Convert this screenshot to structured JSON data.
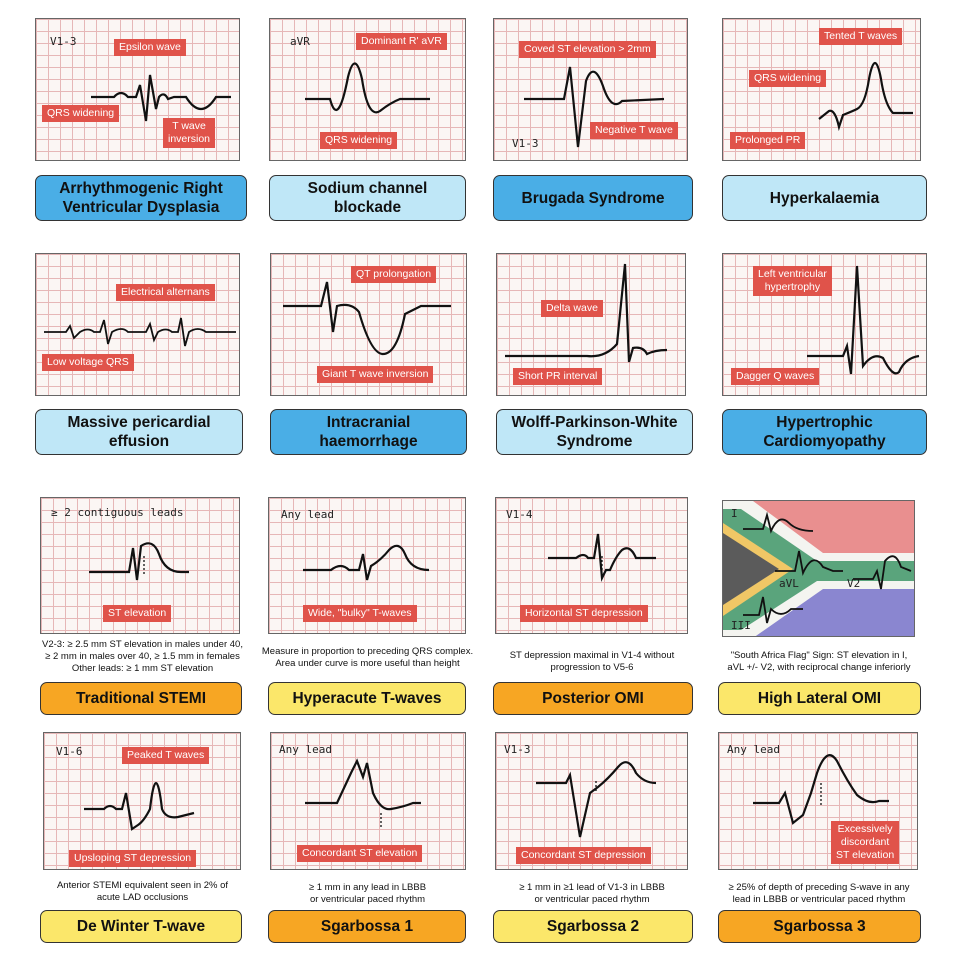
{
  "panels": {
    "arvd": {
      "lead": "V1-3",
      "tags": [
        "Epsilon wave",
        "QRS widening",
        "T wave\ninversion"
      ],
      "label": "Arrhythmogenic Right\nVentricular Dysplasia"
    },
    "sodium": {
      "lead": "aVR",
      "tags": [
        "Dominant R' aVR",
        "QRS widening"
      ],
      "label": "Sodium channel\nblockade"
    },
    "brugada": {
      "lead": "V1-3",
      "tags": [
        "Coved ST elevation > 2mm",
        "Negative T wave"
      ],
      "label": "Brugada Syndrome"
    },
    "hyperk": {
      "tags": [
        "Tented T waves",
        "QRS widening",
        "Prolonged PR"
      ],
      "label": "Hyperkalaemia"
    },
    "pericardial": {
      "tags": [
        "Electrical alternans",
        "Low voltage QRS"
      ],
      "label": "Massive pericardial\neffusion"
    },
    "intracranial": {
      "tags": [
        "QT prolongation",
        "Giant T wave inversion"
      ],
      "label": "Intracranial\nhaemorrhage"
    },
    "wpw": {
      "tags": [
        "Delta wave",
        "Short PR interval"
      ],
      "label": "Wolff-Parkinson-White\nSyndrome"
    },
    "hcm": {
      "tags": [
        "Left ventricular\nhypertrophy",
        "Dagger Q waves"
      ],
      "label": "Hypertrophic\nCardiomyopathy"
    },
    "stemi": {
      "lead": "≥ 2 contiguous leads",
      "tags": [
        "ST elevation"
      ],
      "label": "Traditional STEMI",
      "note": "V2-3: ≥ 2.5 mm ST elevation in males under 40,\n≥ 2 mm in males over 40, ≥ 1.5 mm in females\nOther leads: ≥ 1 mm ST elevation"
    },
    "hyperacute": {
      "lead": "Any lead",
      "tags": [
        "Wide, \"bulky\" T-waves"
      ],
      "label": "Hyperacute T-waves",
      "note": "Measure in proportion to preceding QRS complex.\nArea under curve is more useful than height"
    },
    "posterior": {
      "lead": "V1-4",
      "tags": [
        "Horizontal ST depression"
      ],
      "label": "Posterior OMI",
      "note": "ST depression maximal in V1-4 without\nprogression to V5-6"
    },
    "lateral": {
      "leads": [
        "I",
        "aVL",
        "V2",
        "III"
      ],
      "label": "High Lateral OMI",
      "note": "\"South Africa Flag\" Sign: ST elevation in I,\naVL +/- V2, with reciprocal change inferiorly"
    },
    "dewinter": {
      "lead": "V1-6",
      "tags": [
        "Peaked T waves",
        "Upsloping ST depression"
      ],
      "label": "De Winter T-wave",
      "note": "Anterior STEMI equivalent seen in 2% of\nacute LAD occlusions"
    },
    "sgarbossa1": {
      "lead": "Any lead",
      "tags": [
        "Concordant ST elevation"
      ],
      "label": "Sgarbossa 1",
      "note": "≥ 1 mm in any lead in LBBB\nor ventricular paced rhythm"
    },
    "sgarbossa2": {
      "lead": "V1-3",
      "tags": [
        "Concordant ST depression"
      ],
      "label": "Sgarbossa 2",
      "note": "≥ 1 mm in ≥1 lead of V1-3 in LBBB\nor ventricular paced rhythm"
    },
    "sgarbossa3": {
      "lead": "Any lead",
      "tags": [
        "Excessively\ndiscordant\nST elevation"
      ],
      "label": "Sgarbossa 3",
      "note": "≥ 25% of depth of preceding S-wave in any\nlead in LBBB or ventricular paced rhythm"
    }
  },
  "colors": {
    "tag": "#e0534a",
    "label_blue_dark": "#4aaee6",
    "label_blue_light": "#bfe7f7",
    "label_orange": "#f7a623",
    "label_yellow": "#fbe76a"
  }
}
